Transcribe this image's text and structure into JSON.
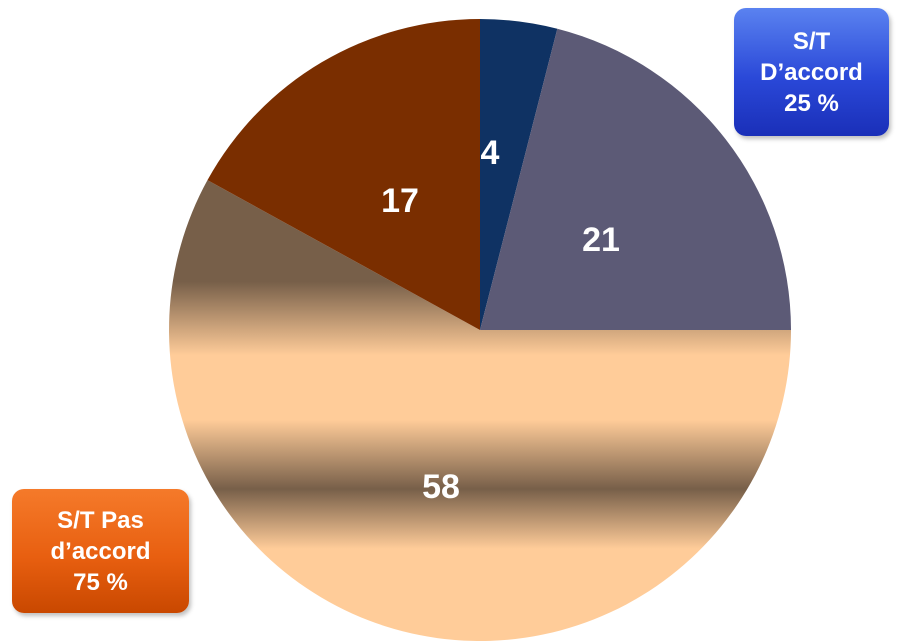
{
  "chart_data": {
    "type": "pie",
    "values": [
      4,
      21,
      58,
      17
    ],
    "labels": [
      "4",
      "21",
      "58",
      "17"
    ],
    "colors": [
      "#0f3263",
      "#5c5a76",
      "#ffcc99",
      "#7a2e00"
    ],
    "start_angle": "12 o'clock, clockwise"
  },
  "callouts": {
    "agree": {
      "line1": "S/T",
      "line2": "D’accord",
      "line3": "25 %",
      "color": "#2a48d8"
    },
    "disagree": {
      "line1": "S/T Pas",
      "line2": "d’accord",
      "line3": "75 %",
      "color": "#e85f10"
    }
  }
}
